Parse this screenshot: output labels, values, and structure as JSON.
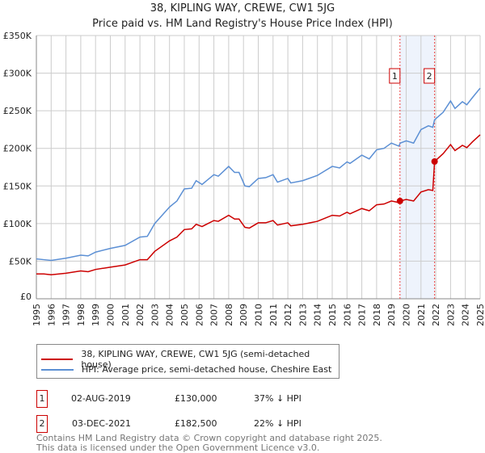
{
  "chart_data": {
    "type": "line",
    "title": "38, KIPLING WAY, CREWE, CW1 5JG",
    "subtitle": "Price paid vs. HM Land Registry's House Price Index (HPI)",
    "xlim": [
      1995,
      2025
    ],
    "ylim": [
      0,
      350000
    ],
    "y_ticks": [
      0,
      50000,
      100000,
      150000,
      200000,
      250000,
      300000,
      350000
    ],
    "y_tick_labels": [
      "£0",
      "£50K",
      "£100K",
      "£150K",
      "£200K",
      "£250K",
      "£300K",
      "£350K"
    ],
    "x_tick_labels": [
      "1995",
      "1996",
      "1997",
      "1998",
      "1999",
      "2000",
      "2001",
      "2002",
      "2003",
      "2004",
      "2005",
      "2006",
      "2007",
      "2008",
      "2009",
      "2010",
      "2011",
      "2012",
      "2013",
      "2014",
      "2015",
      "2016",
      "2017",
      "2018",
      "2019",
      "2020",
      "2021",
      "2022",
      "2023",
      "2024",
      "2025"
    ],
    "grid": true,
    "x": [
      1995,
      1995.5,
      1996,
      1997,
      1998,
      1998.5,
      1999,
      2000,
      2001,
      2002,
      2002.5,
      2003,
      2004,
      2004.5,
      2005,
      2005.5,
      2005.8,
      2006.2,
      2007,
      2007.3,
      2008,
      2008.4,
      2008.7,
      2009.1,
      2009.4,
      2010,
      2010.5,
      2011,
      2011.3,
      2012,
      2012.2,
      2013,
      2014,
      2014.5,
      2015,
      2015.5,
      2016,
      2016.2,
      2017,
      2017.5,
      2018,
      2018.5,
      2019,
      2019.5,
      2019.6,
      2020,
      2020.5,
      2021,
      2021.5,
      2021.8,
      2021.92,
      2022.5,
      2023,
      2023.3,
      2023.8,
      2024.1,
      2024.5,
      2025
    ],
    "series": [
      {
        "name": "38, KIPLING WAY, CREWE, CW1 5JG (semi-detached house)",
        "color": "#cc0000",
        "values": [
          33000,
          33000,
          32000,
          34000,
          37000,
          36000,
          39000,
          42000,
          45000,
          52000,
          52000,
          63000,
          77000,
          82000,
          92000,
          93000,
          99000,
          96000,
          104000,
          103000,
          111000,
          106000,
          106000,
          95000,
          94000,
          101000,
          101000,
          104000,
          98000,
          101000,
          97000,
          99000,
          103000,
          107000,
          111000,
          110000,
          115000,
          113000,
          120000,
          117000,
          125000,
          126000,
          130000,
          128000,
          130000,
          132000,
          130000,
          142000,
          145000,
          144000,
          182500,
          193000,
          205000,
          197000,
          204000,
          201000,
          209000,
          218000
        ]
      },
      {
        "name": "HPI: Average price, semi-detached house, Cheshire East",
        "color": "#5b8fd4",
        "values": [
          53000,
          52000,
          51000,
          54000,
          58000,
          57000,
          62000,
          67000,
          71000,
          82000,
          83000,
          100000,
          122000,
          130000,
          146000,
          147000,
          157000,
          152000,
          165000,
          163000,
          176000,
          168000,
          168000,
          150000,
          149000,
          160000,
          161000,
          165000,
          155000,
          160000,
          154000,
          157000,
          164000,
          170000,
          176000,
          174000,
          182000,
          180000,
          191000,
          186000,
          198000,
          200000,
          207000,
          203000,
          207000,
          210000,
          207000,
          225000,
          230000,
          228000,
          238000,
          248000,
          263000,
          253000,
          262000,
          258000,
          268000,
          280000
        ]
      }
    ],
    "sales": [
      {
        "label": "1",
        "x": 2019.58,
        "y": 130000,
        "date": "02-AUG-2019",
        "price": "£130,000",
        "hpi_diff": "37% ↓ HPI"
      },
      {
        "label": "2",
        "x": 2021.92,
        "y": 182500,
        "date": "03-DEC-2021",
        "price": "£182,500",
        "hpi_diff": "22% ↓ HPI"
      }
    ],
    "shaded_range": [
      2019.58,
      2021.92
    ],
    "shade_color": "#eef3fc"
  },
  "footer": {
    "line1": "Contains HM Land Registry data © Crown copyright and database right 2025.",
    "line2": "This data is licensed under the Open Government Licence v3.0."
  }
}
